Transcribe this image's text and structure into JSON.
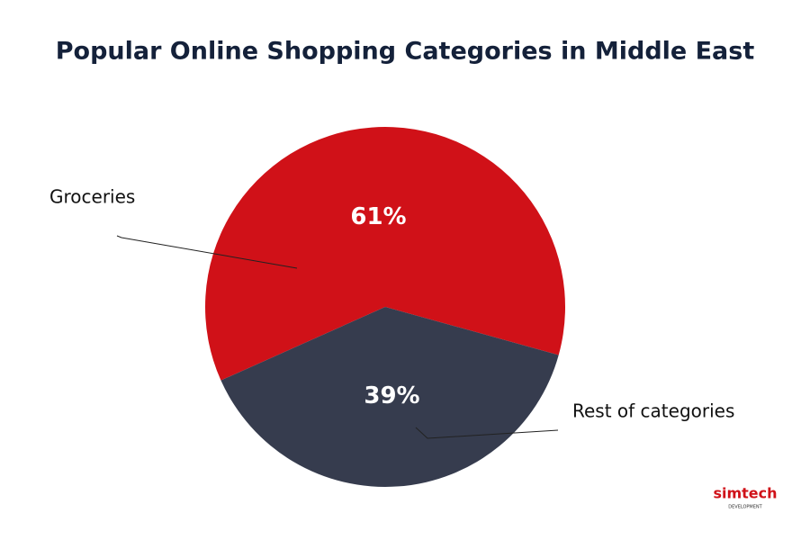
{
  "chart_data": {
    "type": "pie",
    "title": "Popular Online Shopping Categories in Middle East",
    "categories": [
      "Groceries",
      "Rest of categories"
    ],
    "values": [
      61,
      39
    ],
    "value_labels": [
      "61%",
      "39%"
    ],
    "colors": [
      "#d01118",
      "#363c4e"
    ]
  },
  "logo": {
    "name": "simtech",
    "tagline": "DEVELOPMENT"
  }
}
